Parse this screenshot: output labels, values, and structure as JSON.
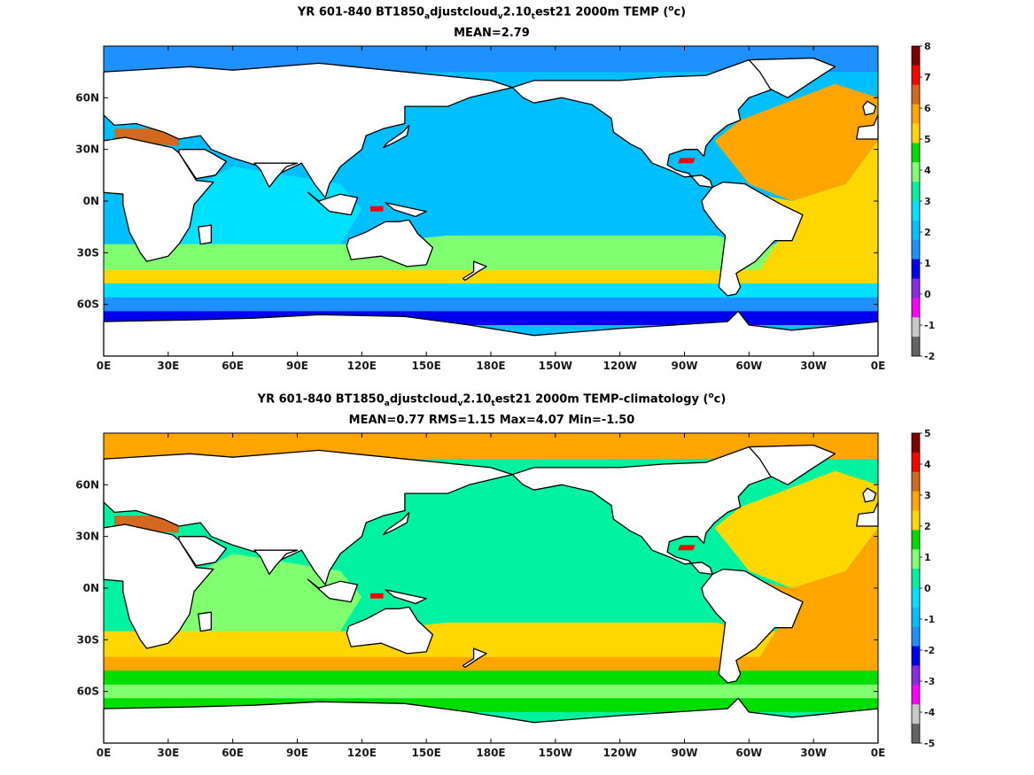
{
  "panels": [
    {
      "title_parts": [
        "YR 601-840 BT1850",
        "a",
        "djustcloud",
        "v",
        "2.10",
        "t",
        "est21 2000m TEMP (",
        "o",
        "c)"
      ],
      "subtitle": "MEAN=2.79",
      "colorbar_ticks": [
        "8",
        "7",
        "6",
        "5",
        "4",
        "3",
        "2",
        "1",
        "0",
        "-1",
        "-2"
      ],
      "colorbar_colors": [
        "#800000",
        "#ff0000",
        "#d2691e",
        "#ffa500",
        "#ffd700",
        "#00dd00",
        "#80ff70",
        "#00f2a0",
        "#00e0ff",
        "#00bfff",
        "#1e90ff",
        "#0000ee",
        "#8a2be2",
        "#ff00ff",
        "#c8c8c8",
        "#646464"
      ]
    },
    {
      "title_parts": [
        "YR 601-840 BT1850",
        "a",
        "djustcloud",
        "v",
        "2.10",
        "t",
        "est21 2000m TEMP-climatology (",
        "o",
        "c)"
      ],
      "subtitle": "MEAN=0.77   RMS=1.15   Max=4.07   Min=-1.50",
      "colorbar_ticks": [
        "5",
        "4",
        "3",
        "2",
        "1",
        "0",
        "-1",
        "-2",
        "-3",
        "-4",
        "-5"
      ],
      "colorbar_colors": [
        "#800000",
        "#ff0000",
        "#d2691e",
        "#ffa500",
        "#ffd700",
        "#00dd00",
        "#80ff70",
        "#00f2a0",
        "#00e0ff",
        "#00bfff",
        "#1e90ff",
        "#0000ee",
        "#8a2be2",
        "#ff00ff",
        "#c8c8c8",
        "#646464"
      ]
    }
  ],
  "axes": {
    "x_ticks": [
      "0E",
      "30E",
      "60E",
      "90E",
      "120E",
      "150E",
      "180E",
      "150W",
      "120W",
      "90W",
      "60W",
      "30W",
      "0E"
    ],
    "y_ticks": [
      "60N",
      "30N",
      "0N",
      "30S",
      "60S"
    ]
  },
  "map_colors": {
    "land": "#ffffff",
    "coast": "#000000",
    "panel1": {
      "arctic": "#1e90ff",
      "pacific": "#00bfff",
      "indian": "#00e0ff",
      "south_band": "#80ff70",
      "atlantic": "#ffa500",
      "south_atlantic": "#ffd700",
      "acc_north": "#ffd700",
      "acc": "#00e0ff",
      "acc_south": "#1e90ff",
      "deep_south": "#0000ee",
      "med": "#d2691e",
      "hot": "#ff0000"
    },
    "panel2": {
      "arctic": "#ffa500",
      "pacific": "#00f2a0",
      "indian": "#80ff70",
      "south_band": "#ffd700",
      "atlantic": "#ffd700",
      "south_atlantic": "#ffa500",
      "acc_north": "#ffa500",
      "acc": "#00dd00",
      "acc_south": "#80ff70",
      "deep_south": "#00dd00",
      "med": "#d2691e",
      "hot": "#ff0000"
    }
  }
}
